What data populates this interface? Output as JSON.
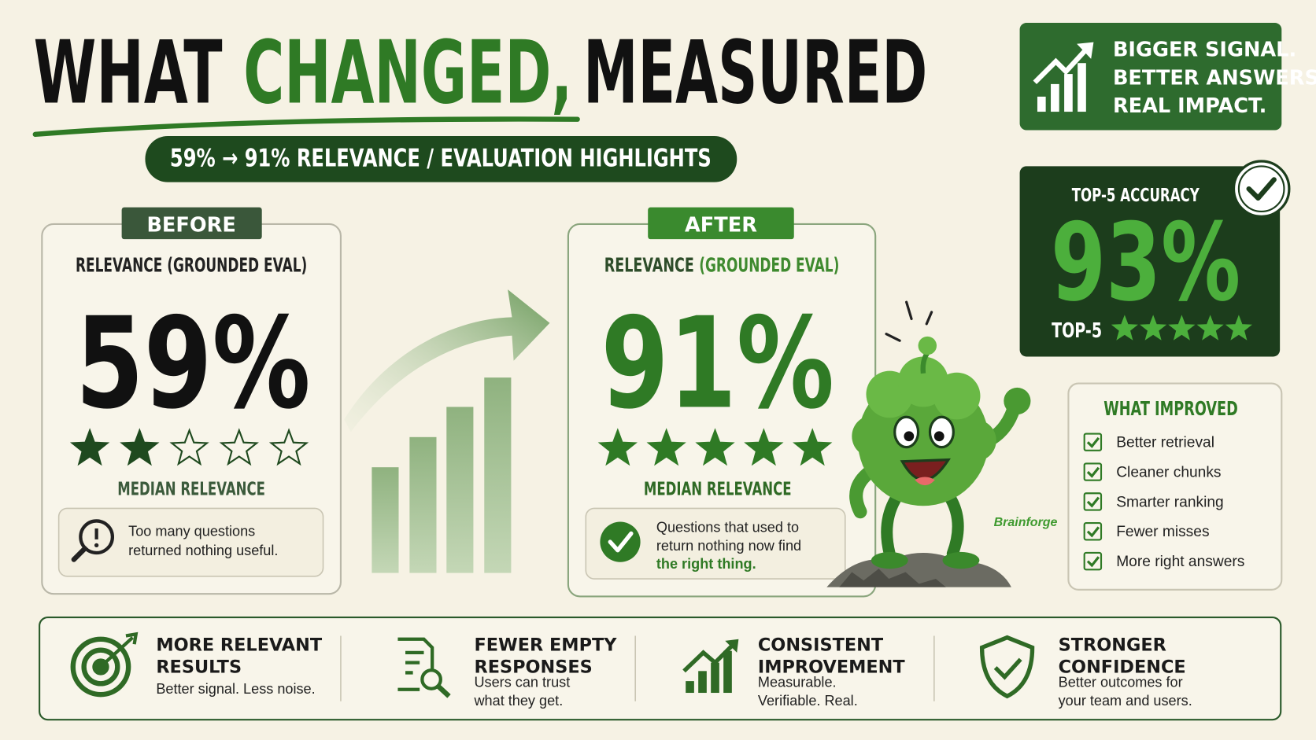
{
  "header": {
    "title_part1": "WHAT",
    "title_highlight": "CHANGED,",
    "title_part2": "MEASURED",
    "subtitle": "59% → 91% RELEVANCE / EVALUATION HIGHLIGHTS"
  },
  "tagline": [
    "BIGGER SIGNAL.",
    "BETTER ANSWERS.",
    "REAL IMPACT."
  ],
  "before": {
    "badge": "BEFORE",
    "label": "RELEVANCE (GROUNDED EVAL)",
    "value": "59%",
    "stars": 2,
    "caption": "MEDIAN RELEVANCE",
    "note": [
      "Too many questions",
      "returned nothing useful."
    ]
  },
  "after": {
    "badge": "AFTER",
    "label_part1": "RELEVANCE",
    "label_part2": "(GROUNDED EVAL)",
    "value": "91%",
    "stars": 5,
    "caption": "MEDIAN RELEVANCE",
    "note": [
      "Questions that used to",
      "return nothing now find"
    ],
    "note_highlight": "the right thing."
  },
  "top5": {
    "label": "TOP-5 ACCURACY",
    "value": "93%",
    "footer": "TOP-5",
    "stars": 5
  },
  "mascot_label": "Brainforge",
  "improved": {
    "title": "WHAT IMPROVED",
    "items": [
      "Better retrieval",
      "Cleaner chunks",
      "Smarter ranking",
      "Fewer misses",
      "More right answers"
    ]
  },
  "benefits": [
    {
      "title": [
        "MORE RELEVANT",
        "RESULTS"
      ],
      "text": [
        "Better signal. Less noise."
      ]
    },
    {
      "title": [
        "FEWER EMPTY",
        "RESPONSES"
      ],
      "text": [
        "Users can trust",
        "what they get."
      ]
    },
    {
      "title": [
        "CONSISTENT",
        "IMPROVEMENT"
      ],
      "text": [
        "Measurable.",
        "Verifiable. Real."
      ]
    },
    {
      "title": [
        "STRONGER",
        "CONFIDENCE"
      ],
      "text": [
        "Better outcomes for",
        "your team and users."
      ]
    }
  ]
}
